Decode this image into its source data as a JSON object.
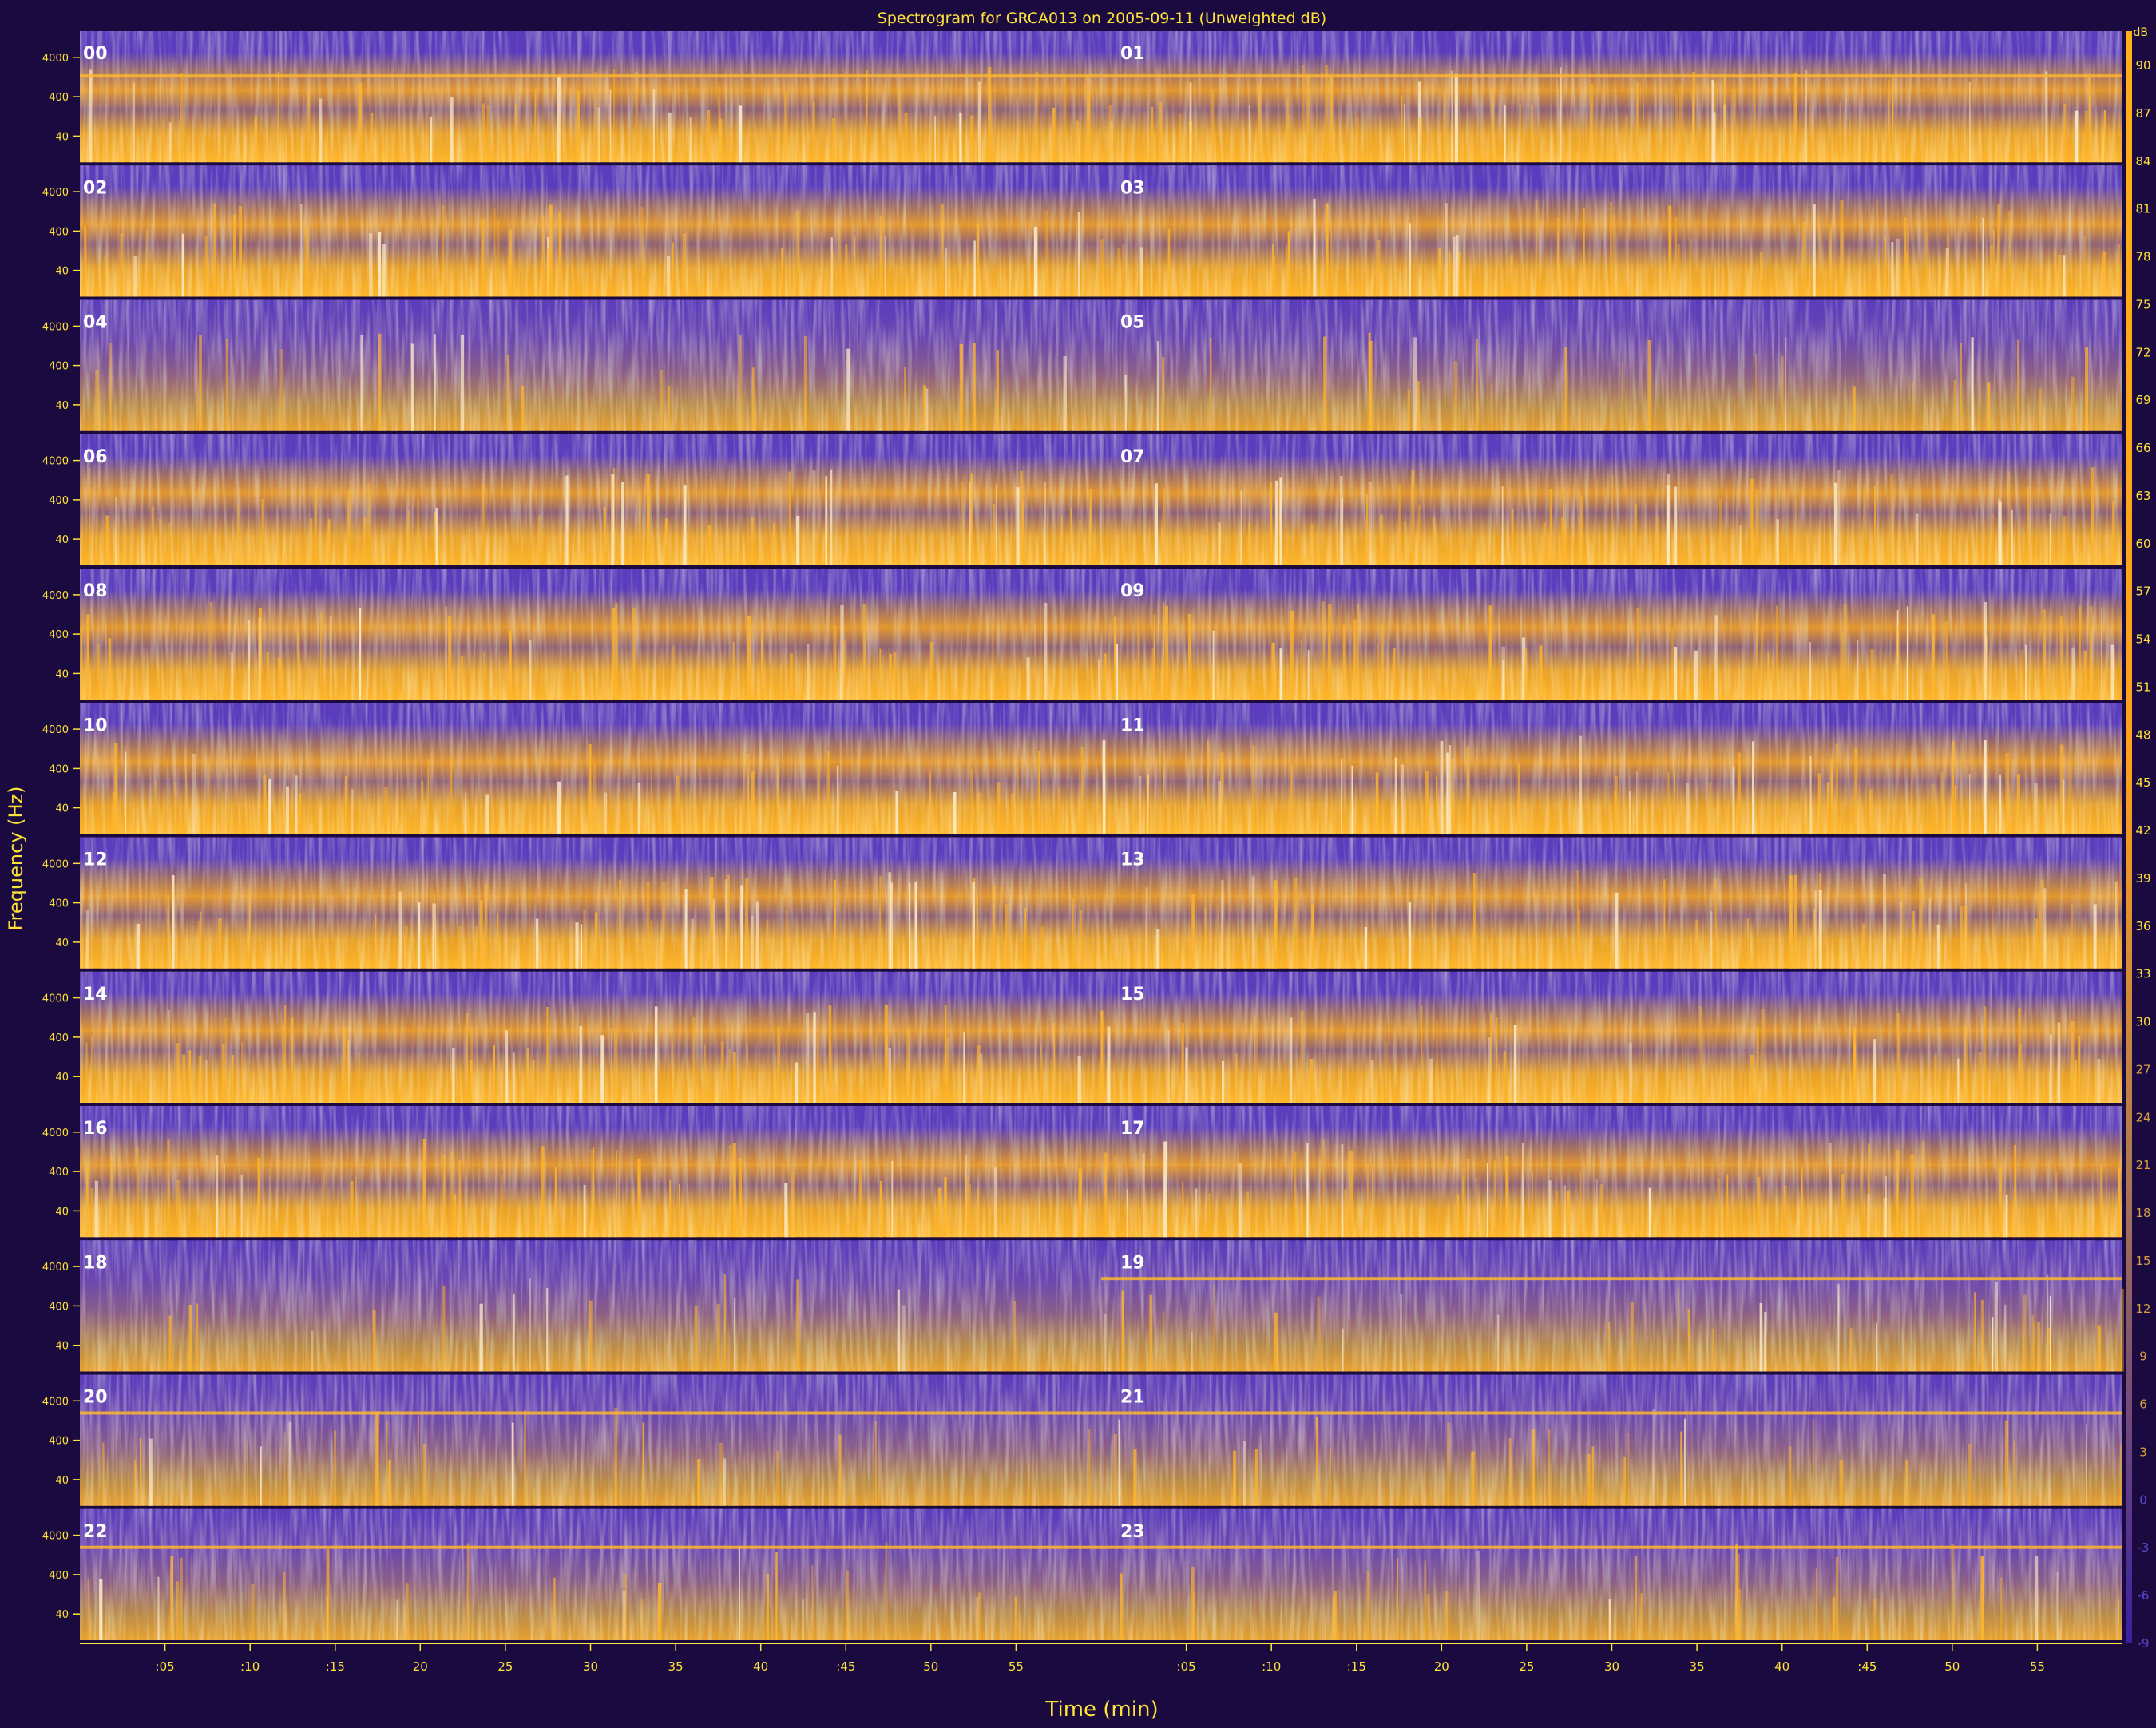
{
  "chart_data": {
    "type": "heatmap",
    "title": "Spectrogram for GRCA013 on 2005-09-11 (Unweighted dB)",
    "xlabel": "Time (min)",
    "ylabel": "Frequency (Hz)",
    "hour_labels": [
      "00",
      "01",
      "02",
      "03",
      "04",
      "05",
      "06",
      "07",
      "08",
      "09",
      "10",
      "11",
      "12",
      "13",
      "14",
      "15",
      "16",
      "17",
      "18",
      "19",
      "20",
      "21",
      "22",
      "23"
    ],
    "frequency_ticks": [
      "4000",
      "400",
      "40"
    ],
    "minute_ticks": [
      ":05",
      ":10",
      ":15",
      "20",
      "25",
      "30",
      "35",
      "40",
      ":45",
      "50",
      "55"
    ],
    "colorbar_unit": "dB",
    "colorbar_ticks": [
      90,
      87,
      84,
      81,
      78,
      75,
      72,
      69,
      66,
      63,
      60,
      57,
      54,
      51,
      48,
      45,
      42,
      39,
      36,
      33,
      30,
      27,
      24,
      21,
      18,
      15,
      12,
      9,
      6,
      3,
      0,
      -3,
      -6,
      -9
    ],
    "colors": {
      "low": "#5a3cbc",
      "mid": "#b7872a",
      "high": "#ffab1a",
      "peak": "#fff0d0",
      "text": "#ffe33a",
      "hour_label": "#ffffff",
      "background": "#1b0a3f"
    }
  }
}
